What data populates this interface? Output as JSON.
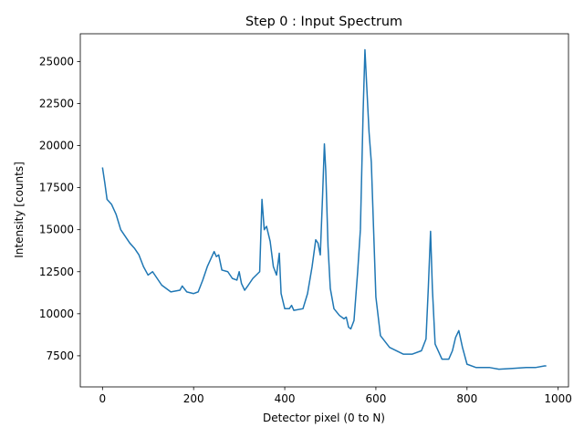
{
  "chart_data": {
    "type": "line",
    "title": "Step 0 : Input Spectrum",
    "x_label": "Detector pixel (0 to N)",
    "y_label": "Intensity [counts]",
    "xlim": [
      -48.7,
      1022.7
    ],
    "ylim": [
      5650,
      26650
    ],
    "xticks": [
      0,
      200,
      400,
      600,
      800,
      1000
    ],
    "yticks": [
      7500,
      10000,
      12500,
      15000,
      17500,
      20000,
      22500,
      25000
    ],
    "grid": false,
    "x": [
      0,
      5,
      10,
      20,
      30,
      40,
      50,
      60,
      70,
      80,
      90,
      100,
      110,
      120,
      130,
      150,
      170,
      175,
      185,
      200,
      210,
      220,
      230,
      240,
      245,
      250,
      255,
      262,
      275,
      285,
      295,
      300,
      305,
      312,
      320,
      330,
      345,
      350,
      355,
      360,
      368,
      375,
      382,
      388,
      392,
      400,
      410,
      415,
      420,
      440,
      450,
      460,
      468,
      473,
      478,
      483,
      487,
      490,
      495,
      500,
      508,
      520,
      530,
      535,
      540,
      545,
      552,
      560,
      566,
      572,
      576,
      580,
      585,
      590,
      595,
      600,
      610,
      630,
      660,
      680,
      700,
      710,
      715,
      720,
      724,
      730,
      745,
      760,
      768,
      775,
      782,
      790,
      800,
      820,
      850,
      870,
      900,
      930,
      950,
      970,
      974
    ],
    "series": [
      {
        "color": "#1f77b4",
        "values": [
          18700,
          17800,
          16800,
          16500,
          15900,
          15000,
          14600,
          14200,
          13900,
          13500,
          12800,
          12300,
          12500,
          12100,
          11700,
          11300,
          11400,
          11650,
          11300,
          11200,
          11300,
          12000,
          12800,
          13400,
          13700,
          13400,
          13500,
          12600,
          12500,
          12100,
          12000,
          12500,
          11800,
          11400,
          11700,
          12100,
          12500,
          16800,
          15000,
          15200,
          14300,
          12800,
          12300,
          13600,
          11200,
          10300,
          10300,
          10500,
          10200,
          10300,
          11200,
          12800,
          14400,
          14200,
          13500,
          17000,
          20100,
          18500,
          14000,
          11500,
          10300,
          9900,
          9700,
          9800,
          9200,
          9100,
          9600,
          12500,
          15000,
          22000,
          25700,
          23500,
          20800,
          19000,
          15000,
          11000,
          8700,
          8000,
          7600,
          7600,
          7800,
          8500,
          11500,
          14900,
          11500,
          8200,
          7300,
          7300,
          7800,
          8600,
          9000,
          8000,
          7000,
          6800,
          6800,
          6700,
          6750,
          6800,
          6800,
          6900,
          6900
        ]
      }
    ]
  }
}
